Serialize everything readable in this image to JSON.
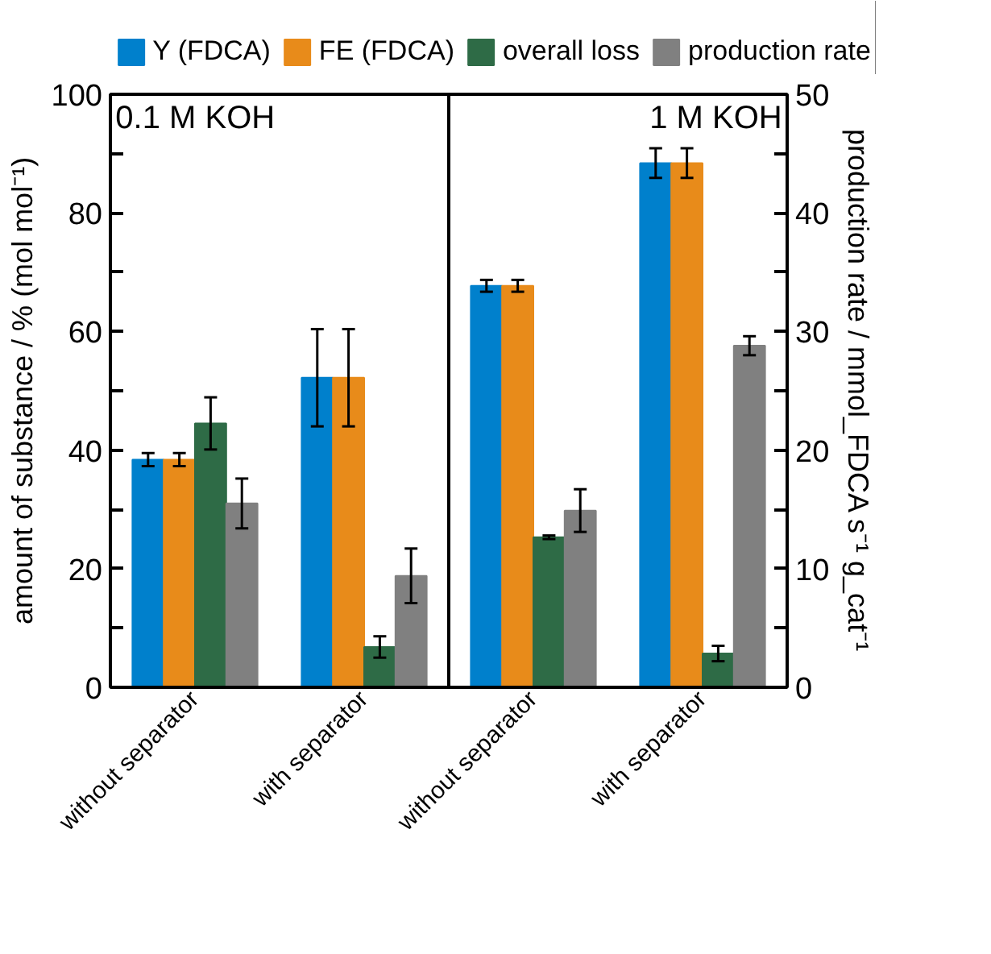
{
  "chart_data": {
    "type": "bar",
    "categories": [
      "without separator",
      "with separator",
      "without separator",
      "with separator"
    ],
    "ylabel": "amount of substance / % (mol mol⁻¹)",
    "y2label": "production rate / mmol_FDCA s⁻¹ g_cat⁻¹",
    "annotations": [
      "0.1 M KOH",
      "1 M KOH"
    ],
    "ylim": [
      0,
      100
    ],
    "yticks": [
      0,
      {
        "value": 10,
        "label": null
      },
      20,
      {
        "value": 30,
        "label": null
      },
      40,
      {
        "value": 50,
        "label": null
      },
      60,
      {
        "value": 70,
        "label": null
      },
      80,
      {
        "value": 90,
        "label": null
      },
      100
    ],
    "y2lim": [
      0,
      50
    ],
    "y2ticks": [
      0,
      {
        "value": 5,
        "label": null
      },
      10,
      {
        "value": 15,
        "label": null
      },
      20,
      {
        "value": 25,
        "label": null
      },
      30,
      {
        "value": 35,
        "label": null
      },
      40,
      {
        "value": 45,
        "label": null
      },
      50
    ],
    "legend": "top",
    "series": [
      {
        "name": "Y (FDCA)",
        "color": "#0080cc",
        "values": [
          38.4,
          52.2,
          67.7,
          88.4
        ],
        "errors": [
          1.1,
          8.2,
          1.0,
          2.5
        ]
      },
      {
        "name": "FE (FDCA)",
        "color": "#e88b1a",
        "values": [
          38.4,
          52.2,
          67.7,
          88.4
        ],
        "errors": [
          1.1,
          8.2,
          1.0,
          2.5
        ]
      },
      {
        "name": "overall loss",
        "color": "#2e6b46",
        "values": [
          44.5,
          6.8,
          25.3,
          5.7
        ],
        "errors": [
          4.4,
          1.8,
          0.3,
          1.3
        ]
      },
      {
        "name": "production rate",
        "color": "#808080",
        "axis": "y2",
        "values": [
          15.5,
          9.4,
          14.9,
          28.8
        ],
        "errors": [
          2.1,
          2.3,
          1.8,
          0.8
        ]
      }
    ]
  }
}
